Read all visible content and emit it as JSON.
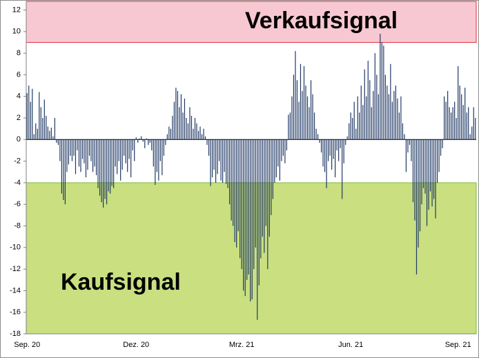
{
  "chart_data": {
    "type": "bar",
    "color": "#1f3864",
    "ylim": [
      -18,
      12.8
    ],
    "yticks": [
      -18,
      -16,
      -14,
      -12,
      -10,
      -8,
      -6,
      -4,
      -2,
      0,
      2,
      4,
      6,
      8,
      10,
      12
    ],
    "zones": [
      {
        "from": 9,
        "to": 12.8,
        "label": "Verkaufsignal",
        "color": "#f8c8d2",
        "edge": "#e0303c"
      },
      {
        "from": -18,
        "to": -4,
        "label": "Kaufsignal",
        "color": "#c9df80",
        "edge": "#7cbf3c"
      }
    ],
    "categories": [
      "Sep. 20",
      null,
      null,
      null,
      null,
      null,
      null,
      null,
      null,
      null,
      null,
      null,
      null,
      null,
      null,
      null,
      null,
      null,
      null,
      null,
      null,
      null,
      null,
      null,
      null,
      null,
      null,
      null,
      null,
      null,
      null,
      null,
      null,
      null,
      null,
      null,
      null,
      null,
      null,
      null,
      null,
      null,
      null,
      null,
      null,
      null,
      null,
      null,
      null,
      null,
      null,
      null,
      null,
      null,
      null,
      null,
      null,
      null,
      null,
      null,
      null,
      null,
      null,
      "Dez. 20",
      null,
      null,
      null,
      null,
      null,
      null,
      null,
      null,
      null,
      null,
      null,
      null,
      null,
      null,
      null,
      null,
      null,
      null,
      null,
      null,
      null,
      null,
      null,
      null,
      null,
      null,
      null,
      null,
      null,
      null,
      null,
      null,
      null,
      null,
      null,
      null,
      null,
      null,
      null,
      null,
      null,
      null,
      null,
      null,
      null,
      null,
      null,
      null,
      null,
      null,
      null,
      null,
      null,
      null,
      null,
      null,
      null,
      null,
      null,
      null,
      "Mrz. 21",
      null,
      null,
      null,
      null,
      null,
      null,
      null,
      null,
      null,
      null,
      null,
      null,
      null,
      null,
      null,
      null,
      null,
      null,
      null,
      null,
      null,
      null,
      null,
      null,
      null,
      null,
      null,
      null,
      null,
      null,
      null,
      null,
      null,
      null,
      null,
      null,
      null,
      null,
      null,
      null,
      null,
      null,
      null,
      null,
      null,
      null,
      null,
      null,
      null,
      null,
      null,
      null,
      null,
      null,
      null,
      null,
      null,
      null,
      null,
      null,
      null,
      null,
      "Jun. 21",
      null,
      null,
      null,
      null,
      null,
      null,
      null,
      null,
      null,
      null,
      null,
      null,
      null,
      null,
      null,
      null,
      null,
      null,
      null,
      null,
      null,
      null,
      null,
      null,
      null,
      null,
      null,
      null,
      null,
      null,
      null,
      null,
      null,
      null,
      null,
      null,
      null,
      null,
      null,
      null,
      null,
      null,
      null,
      null,
      null,
      null,
      null,
      null,
      null,
      null,
      null,
      null,
      null,
      null,
      null,
      null,
      null,
      null,
      null,
      null,
      null,
      "Sep. 21",
      null,
      null,
      null,
      null,
      null,
      null,
      null,
      null,
      null,
      null
    ],
    "values": [
      4.3,
      5,
      3.5,
      4.7,
      0.5,
      1.5,
      1,
      4.4,
      3,
      2,
      3.7,
      2.2,
      1.2,
      0.8,
      1.1,
      0.3,
      2,
      -0.3,
      -0.5,
      -2,
      -5,
      -5.6,
      -6,
      -3,
      -2.3,
      -1.5,
      -2,
      -1.5,
      -3.2,
      -1,
      -2.5,
      -3,
      -1.8,
      -2.2,
      -3.5,
      -2.8,
      -1.5,
      -2,
      -3,
      -2.5,
      -3.3,
      -4.5,
      -5.2,
      -5.8,
      -6.3,
      -5.5,
      -6,
      -4.8,
      -5,
      -4.3,
      -4.5,
      -2.5,
      -3.2,
      -2,
      -3.8,
      -2.8,
      -1.5,
      -2.2,
      -3,
      -1.8,
      -3.5,
      -1,
      -2,
      0.2,
      -0.3,
      0.1,
      0.3,
      -0.2,
      -0.8,
      0.1,
      -0.5,
      -0.3,
      -1,
      -2.5,
      -4.2,
      -3,
      -3.8,
      -2,
      -3.3,
      -1.5,
      -0.5,
      0.5,
      1.2,
      1,
      2.2,
      3.5,
      4.8,
      4.5,
      3,
      4.2,
      2.5,
      3.8,
      2,
      1.5,
      3,
      2.2,
      1,
      2,
      1.5,
      0.8,
      1.2,
      0.5,
      1,
      0.3,
      -0.5,
      -1.5,
      -4.3,
      -3.5,
      -2.8,
      -4,
      -3.2,
      -2,
      -3.8,
      -4,
      -3,
      -4.1,
      -4.5,
      -6,
      -7.5,
      -8,
      -9.5,
      -10,
      -8.5,
      -11,
      -12,
      -14,
      -14.5,
      -13,
      -12.5,
      -15,
      -14.8,
      -12,
      -10,
      -16.7,
      -13.5,
      -11,
      -9,
      -10.5,
      -8,
      -12,
      -9,
      -7,
      -5.5,
      -4,
      -3.5,
      -2.5,
      -3.8,
      -2,
      -1.5,
      -2.2,
      -1,
      2.3,
      2.5,
      4,
      6,
      8.2,
      5.5,
      3.5,
      7,
      4.5,
      6.8,
      5,
      4,
      3,
      5.5,
      4.2,
      2.5,
      1,
      0.5,
      -0.3,
      -1.2,
      -2.5,
      -3,
      -4.5,
      -2,
      -1.5,
      -2.8,
      -1.8,
      -3.5,
      -1,
      -2,
      -0.8,
      -5.5,
      -2.2,
      -0.5,
      0.3,
      1.5,
      2.5,
      2,
      3.5,
      1,
      4,
      2.5,
      5,
      3.2,
      6.5,
      4,
      7.3,
      5.5,
      3,
      4.5,
      8,
      6,
      4.2,
      9.8,
      9,
      8.7,
      6,
      5,
      4.2,
      7,
      3.5,
      4.5,
      5,
      3.8,
      2.5,
      4,
      1.5,
      0.5,
      -3,
      -1.2,
      -0.5,
      -2,
      -5.8,
      -7.5,
      -12.5,
      -10,
      -8.5,
      -6,
      -4.5,
      -5,
      -8,
      -6.5,
      -4.8,
      -6.2,
      -5.5,
      -7.3,
      -4,
      -3,
      -1.5,
      -0.8,
      4,
      3.5,
      4.5,
      3,
      2.5,
      3,
      3.5,
      2,
      6.8,
      5,
      4.2,
      3.2,
      4.8,
      2.5,
      3,
      0.5,
      1.2,
      3,
      2
    ]
  }
}
